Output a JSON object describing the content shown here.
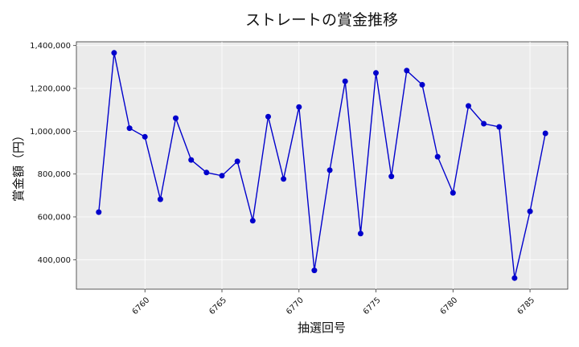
{
  "chart_data": {
    "type": "line",
    "title": "ストレートの賞金推移",
    "xlabel": "抽選回号",
    "ylabel": "賞金額（円）",
    "x": [
      6757,
      6758,
      6759,
      6760,
      6761,
      6762,
      6763,
      6764,
      6765,
      6766,
      6767,
      6768,
      6769,
      6770,
      6771,
      6772,
      6773,
      6774,
      6775,
      6776,
      6777,
      6778,
      6779,
      6780,
      6781,
      6782,
      6783,
      6784,
      6785,
      6786
    ],
    "series": [
      {
        "values": [
          622000,
          1366000,
          1014000,
          974000,
          682000,
          1061000,
          866000,
          807000,
          792000,
          859000,
          582000,
          1068000,
          777000,
          1113000,
          350000,
          818000,
          1233000,
          522000,
          1272000,
          789000,
          1283000,
          1217000,
          881000,
          712000,
          1118000,
          1035000,
          1020000,
          314000,
          626000,
          990000
        ],
        "color": "#0000cc"
      }
    ],
    "xlim": [
      6755.55,
      6787.45
    ],
    "ylim": [
      262400,
      1417600
    ],
    "xticks": [
      6760,
      6765,
      6770,
      6775,
      6780,
      6785
    ],
    "xtick_labels": [
      "6760",
      "6765",
      "6770",
      "6775",
      "6780",
      "6785"
    ],
    "yticks": [
      400000,
      600000,
      800000,
      1000000,
      1200000,
      1400000
    ],
    "ytick_labels": [
      "400,000",
      "600,000",
      "800,000",
      "1,000,000",
      "1,200,000",
      "1,400,000"
    ],
    "grid": true,
    "plot_background": "#ebebeb"
  }
}
